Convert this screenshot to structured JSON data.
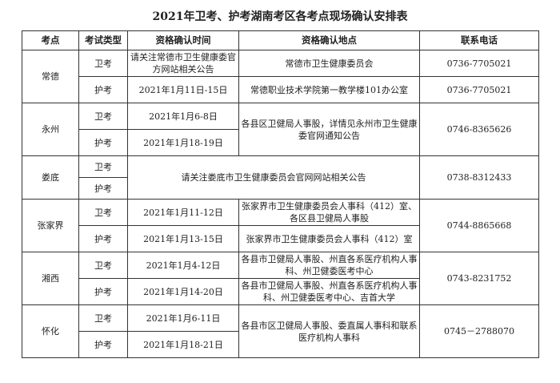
{
  "title": "2021年卫考、护考湖南考区各考点现场确认安排表",
  "headers": [
    "考点",
    "考试类型",
    "资格确认时间",
    "资格确认地点",
    "联系电话"
  ],
  "rows": {
    "changde": {
      "site": "常德",
      "wk_type": "卫考",
      "wk_time": "请关注常德市卫生健康委官方网站相关公告",
      "wk_place": "常德市卫生健康委员会",
      "wk_phone": "0736-7705021",
      "hk_type": "护考",
      "hk_time": "2021年1月11日-15日",
      "hk_place": "常德职业技术学院第一教学楼101办公室",
      "hk_phone": "0736-7705021"
    },
    "yongzhou": {
      "site": "永州",
      "wk_type": "卫考",
      "wk_time": "2021年1月6-8日",
      "hk_type": "护考",
      "hk_time": "2021年1月18-19日",
      "place": "各县区卫健局人事股，详情见永州市卫生健康委官网通知公告",
      "phone": "0746-8365626"
    },
    "loudi": {
      "site": "娄底",
      "wk_type": "卫考",
      "hk_type": "护考",
      "notice": "请关注娄底市卫生健康委员会官网网站相关公告",
      "phone": "0738-8312433"
    },
    "zhangjiajie": {
      "site": "张家界",
      "wk_type": "卫考",
      "wk_time": "2021年1月11-12日",
      "wk_place": "张家界市卫生健康委员会人事科（412）室、各区县卫健局人事股",
      "hk_type": "护考",
      "hk_time": "2021年1月13-15日",
      "hk_place": "张家界市卫生健康委员会人事科（412）室",
      "phone": "0744-8865668"
    },
    "xiangxi": {
      "site": "湘西",
      "wk_type": "卫考",
      "wk_time": "2021年1月4-12日",
      "wk_place": "各县市卫健局人事股、州直各系医疗机构人事科、州卫健委医考中心",
      "hk_type": "护考",
      "hk_time": "2021年1月14-20日",
      "hk_place": "各县市卫健局人事股、州直各系医疗机构人事科、州卫健委医考中心、吉首大学",
      "phone": "0743-8231752"
    },
    "huaihua": {
      "site": "怀化",
      "wk_type": "卫考",
      "wk_time": "2021年1月6-11日",
      "hk_type": "护考",
      "hk_time": "2021年1月18-21日",
      "place": "各县市区卫健局人事股、委直属人事科和联系医疗机构人事科",
      "phone": "0745－2788070"
    }
  }
}
